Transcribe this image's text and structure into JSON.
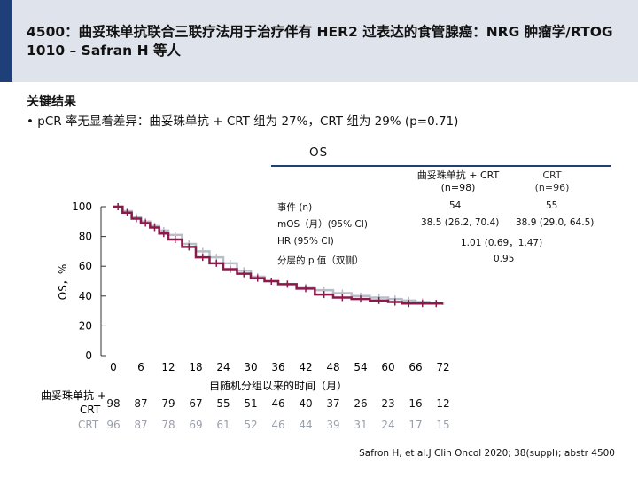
{
  "title": "4500：曲妥珠单抗联合三联疗法用于治疗伴有 HER2 过表达的食管腺癌：NRG 肿瘤学/RTOG 1010 – Safran H 等人",
  "section_heading": "关键结果",
  "bullet": "•  pCR 率无显着差异：曲妥珠单抗 + CRT 组为 27%，CRT 组为 29% (p=0.71)",
  "os_label": "OS",
  "legend": {
    "arm1_name": "曲妥珠单抗 + CRT",
    "arm1_n": "(n=98)",
    "arm2_name": "CRT",
    "arm2_n": "(n=96)",
    "arm1_color": "#8b1a4a",
    "arm2_color": "#b8bec8"
  },
  "stats": [
    {
      "label": "事件 (n)",
      "arm1": "54",
      "arm2": "55"
    },
    {
      "label": "mOS（月）(95% CI)",
      "arm1": "38.5 (26.2, 70.4)",
      "arm2": "38.9 (29.0, 64.5)"
    },
    {
      "label": "HR (95% CI)",
      "both": "1.01 (0.69，1.47)"
    },
    {
      "label": "分层的 p 值（双侧）",
      "both": "0.95"
    }
  ],
  "risk_table": {
    "arm1_label_line1": "曲妥珠单抗 +",
    "arm1_label_line2": "CRT",
    "arm2_label": "CRT",
    "arm1": [
      "98",
      "87",
      "79",
      "67",
      "55",
      "51",
      "46",
      "40",
      "37",
      "26",
      "23",
      "16",
      "12"
    ],
    "arm2": [
      "96",
      "87",
      "78",
      "69",
      "61",
      "52",
      "46",
      "44",
      "39",
      "31",
      "24",
      "17",
      "15"
    ]
  },
  "footnote": "Safron H, et al.J Clin Oncol 2020; 38(suppl); abstr 4500",
  "chart_data": {
    "type": "line",
    "title": "",
    "xlabel": "自随机分组以来的时间（月）",
    "ylabel": "OS，%",
    "x_ticks": [
      "0",
      "6",
      "12",
      "18",
      "24",
      "30",
      "36",
      "42",
      "48",
      "54",
      "60",
      "66",
      "72"
    ],
    "y_ticks": [
      "0",
      "20",
      "40",
      "60",
      "80",
      "100"
    ],
    "xlim": [
      0,
      72
    ],
    "ylim": [
      0,
      100
    ],
    "series": [
      {
        "name": "曲妥珠单抗 + CRT",
        "x": [
          0,
          2,
          4,
          6,
          8,
          10,
          12,
          15,
          18,
          21,
          24,
          27,
          30,
          33,
          36,
          40,
          44,
          48,
          52,
          56,
          60,
          63,
          66,
          69,
          72
        ],
        "y": [
          100,
          96,
          92,
          89,
          86,
          82,
          78,
          73,
          66,
          62,
          58,
          55,
          52,
          50,
          48,
          45,
          41,
          39,
          38,
          37,
          36,
          35,
          35,
          35,
          35
        ]
      },
      {
        "name": "CRT",
        "x": [
          0,
          2,
          4,
          6,
          8,
          10,
          12,
          15,
          18,
          21,
          24,
          27,
          30,
          33,
          36,
          40,
          44,
          48,
          52,
          56,
          60,
          63,
          66,
          69,
          72
        ],
        "y": [
          100,
          97,
          93,
          90,
          87,
          84,
          81,
          75,
          70,
          66,
          62,
          57,
          53,
          50,
          48,
          46,
          44,
          42,
          40,
          39,
          38,
          37,
          36,
          35,
          34
        ]
      }
    ]
  }
}
